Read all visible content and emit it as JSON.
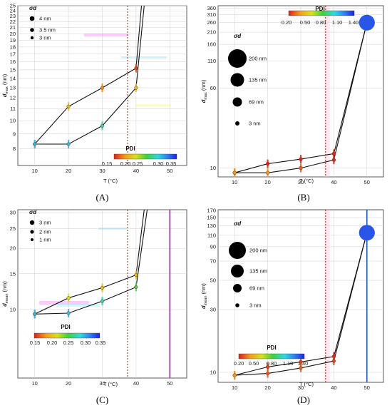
{
  "chart_data": [
    {
      "type": "line",
      "caption": "(A)",
      "xlabel": "T (°C)",
      "ylabel": "d_max (nm)",
      "yscale": "log",
      "xlim": [
        5,
        55
      ],
      "ylim": [
        7,
        25
      ],
      "x_ticks": [
        10,
        20,
        30,
        40,
        50
      ],
      "y_ticks": [
        8,
        9,
        10,
        11,
        12,
        13,
        14,
        15,
        16,
        17,
        18,
        19,
        20,
        21,
        22,
        23,
        24,
        25
      ],
      "threshold_x": 37.5,
      "series": [
        {
          "x": [
            10,
            20,
            30,
            40
          ],
          "y": [
            8.3,
            11.2,
            13.0,
            15.2
          ],
          "pdi": [
            0.3,
            0.2,
            0.18,
            0.16
          ],
          "sigma": [
            3.6,
            3.4,
            3.5,
            3.8
          ]
        },
        {
          "x": [
            10,
            20,
            30,
            40
          ],
          "y": [
            8.3,
            8.3,
            9.6,
            13.0
          ],
          "pdi": [
            0.3,
            0.3,
            0.28,
            0.2
          ],
          "sigma": [
            3.3,
            3.3,
            3.3,
            3.5
          ]
        }
      ],
      "rise_lines": [
        {
          "x": [
            40,
            41.6
          ],
          "y": [
            15.2,
            25
          ]
        },
        {
          "x": [
            40,
            42.4
          ],
          "y": [
            13.0,
            25
          ]
        }
      ],
      "sigma_title": "σd",
      "sigma_legend": [
        {
          "label": "4 nm",
          "size": 4
        },
        {
          "label": "3.5 nm",
          "size": 3.5
        },
        {
          "label": "3 nm",
          "size": 3
        }
      ],
      "pdi_title": "PDI",
      "pdi_ticks": [
        "0.15",
        "0.20",
        "0.25",
        "0.30",
        "0.35"
      ]
    },
    {
      "type": "line",
      "caption": "(B)",
      "xlabel": "T (°C)",
      "ylabel": "d_max (nm)",
      "yscale": "log",
      "xlim": [
        5,
        55
      ],
      "ylim": [
        8.2,
        380
      ],
      "x_ticks": [
        10,
        20,
        30,
        40,
        50
      ],
      "y_ticks": [
        10,
        60,
        110,
        160,
        210,
        260,
        310,
        360
      ],
      "threshold_x": 37.5,
      "series": [
        {
          "x": [
            10,
            20,
            30,
            40,
            50
          ],
          "y": [
            9.0,
            11.0,
            12.2,
            13.8,
            260
          ],
          "pdi": [
            0.4,
            0.2,
            0.2,
            0.2,
            1.3
          ],
          "sigma": [
            3,
            3,
            3,
            3,
            69
          ]
        },
        {
          "x": [
            10,
            20,
            30,
            40,
            50
          ],
          "y": [
            9.0,
            9.0,
            10.0,
            12.0,
            260
          ],
          "pdi": [
            0.4,
            0.4,
            0.3,
            0.2,
            1.3
          ],
          "sigma": [
            3,
            3,
            3,
            3,
            69
          ]
        }
      ],
      "sigma_title": "σd",
      "sigma_legend": [
        {
          "label": "200 nm",
          "size": 200
        },
        {
          "label": "135 nm",
          "size": 135
        },
        {
          "label": "69 nm",
          "size": 69
        },
        {
          "label": "3 nm",
          "size": 3
        }
      ],
      "pdi_title": "PDI",
      "pdi_ticks": [
        "0.20",
        "0.50",
        "0.80",
        "1.10",
        "1.40"
      ]
    },
    {
      "type": "line",
      "caption": "(C)",
      "xlabel": "T (°C)",
      "ylabel": "d_mean (nm)",
      "yscale": "log",
      "xlim": [
        5,
        55
      ],
      "ylim": [
        4.6,
        31
      ],
      "x_ticks": [
        10,
        20,
        30,
        40,
        50
      ],
      "y_ticks": [
        10,
        15,
        20,
        25,
        30
      ],
      "threshold_x": 37.5,
      "vline_x": 50,
      "series": [
        {
          "x": [
            10,
            20,
            30,
            40
          ],
          "y": [
            9.5,
            11.4,
            12.8,
            14.8
          ],
          "pdi": [
            0.3,
            0.22,
            0.2,
            0.2
          ],
          "sigma": [
            1.5,
            1.5,
            1.5,
            2
          ]
        },
        {
          "x": [
            10,
            20,
            30,
            40
          ],
          "y": [
            9.5,
            9.6,
            11.0,
            12.9
          ],
          "pdi": [
            0.3,
            0.3,
            0.28,
            0.26
          ],
          "sigma": [
            1.5,
            1.5,
            1.5,
            2
          ]
        }
      ],
      "rise_lines": [
        {
          "x": [
            40,
            42.4
          ],
          "y": [
            14.8,
            31
          ]
        },
        {
          "x": [
            40,
            43.3
          ],
          "y": [
            12.9,
            31
          ]
        }
      ],
      "sigma_title": "σd",
      "sigma_legend": [
        {
          "label": "3 nm",
          "size": 3
        },
        {
          "label": "2 nm",
          "size": 2
        },
        {
          "label": "1 nm",
          "size": 1
        }
      ],
      "pdi_title": "PDI",
      "pdi_ticks": [
        "0.15",
        "0.20",
        "0.25",
        "0.30",
        "0.35"
      ]
    },
    {
      "type": "line",
      "caption": "(D)",
      "xlabel": "T (°C)",
      "ylabel": "d_mean (nm)",
      "yscale": "log",
      "xlim": [
        5,
        55
      ],
      "ylim": [
        8.4,
        172
      ],
      "x_ticks": [
        10,
        20,
        30,
        40,
        50
      ],
      "y_ticks": [
        10,
        30,
        50,
        70,
        90,
        110,
        130,
        150,
        170
      ],
      "threshold_x": 37.5,
      "vline_x": 50,
      "series": [
        {
          "x": [
            10,
            20,
            30,
            40,
            50
          ],
          "y": [
            9.5,
            11.0,
            12.0,
            13.2,
            115
          ],
          "pdi": [
            0.4,
            0.25,
            0.25,
            0.2,
            1.3
          ],
          "sigma": [
            3,
            3,
            3,
            3,
            69
          ]
        },
        {
          "x": [
            10,
            20,
            30,
            40,
            50
          ],
          "y": [
            9.5,
            9.8,
            10.8,
            12.2,
            115
          ],
          "pdi": [
            0.4,
            0.3,
            0.3,
            0.25,
            1.3
          ],
          "sigma": [
            3,
            3,
            3,
            3,
            69
          ]
        }
      ],
      "sigma_title": "σd",
      "sigma_legend": [
        {
          "label": "200 nm",
          "size": 200
        },
        {
          "label": "135 nm",
          "size": 135
        },
        {
          "label": "69 nm",
          "size": 69
        },
        {
          "label": "3 nm",
          "size": 3
        }
      ],
      "pdi_title": "PDI",
      "pdi_ticks": [
        "0.20",
        "0.50",
        "0.80",
        "1.10",
        "1.40"
      ]
    }
  ]
}
